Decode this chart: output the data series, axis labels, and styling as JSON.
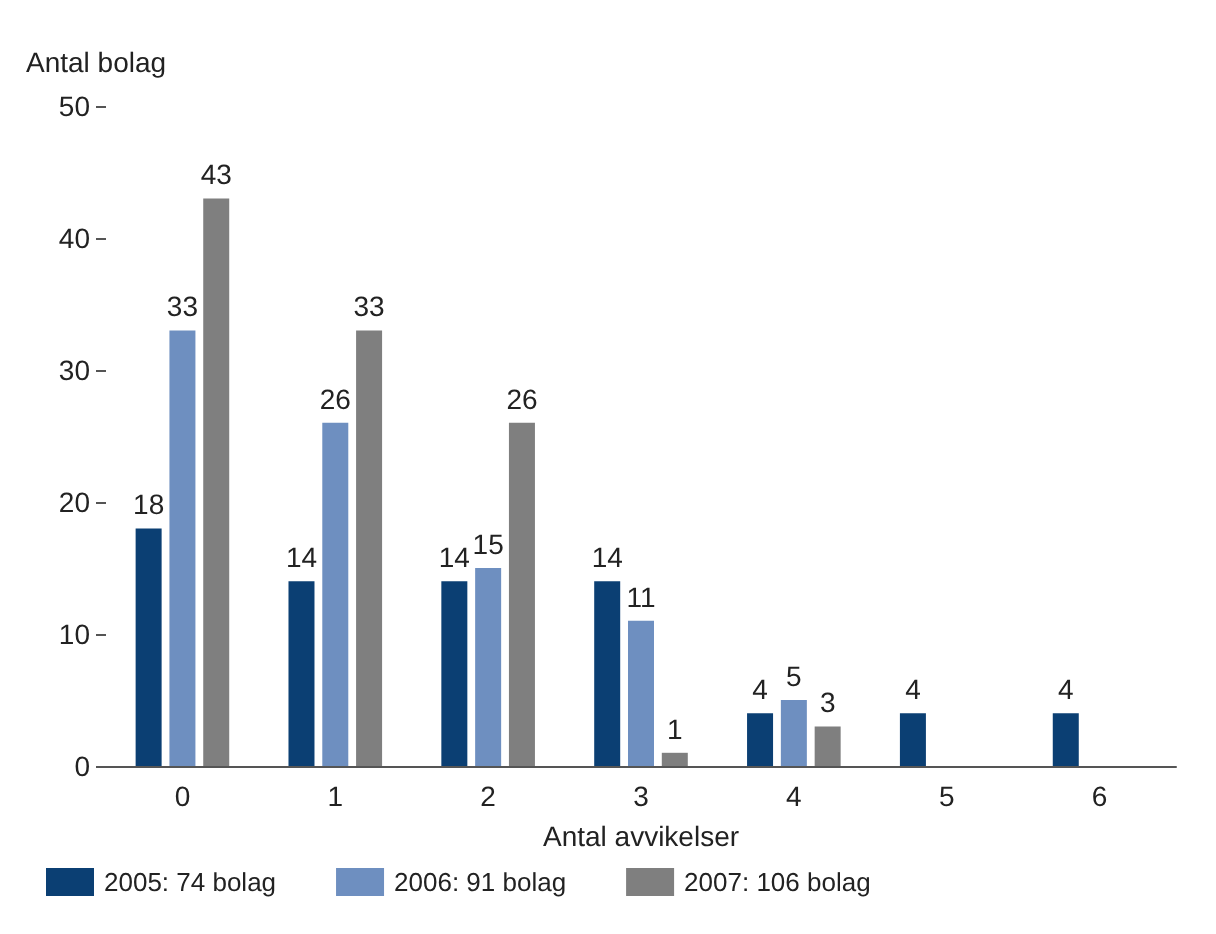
{
  "chart_data": {
    "type": "bar",
    "ylabel": "Antal bolag",
    "xlabel": "Antal avvikelser",
    "categories": [
      "0",
      "1",
      "2",
      "3",
      "4",
      "5",
      "6"
    ],
    "series": [
      {
        "name": "2005: 74 bolag",
        "color": "#0b3f73",
        "values": [
          18,
          14,
          14,
          14,
          4,
          4,
          4
        ]
      },
      {
        "name": "2006: 91 bolag",
        "color": "#6e8fc0",
        "values": [
          33,
          26,
          15,
          11,
          5,
          null,
          null
        ]
      },
      {
        "name": "2007: 106 bolag",
        "color": "#7f7f7f",
        "values": [
          43,
          33,
          26,
          1,
          3,
          null,
          null
        ]
      }
    ],
    "ylim": [
      0,
      50
    ],
    "yticks": [
      0,
      10,
      20,
      30,
      40,
      50
    ],
    "grid": false,
    "legend": "bottom left",
    "data_labels": true
  }
}
